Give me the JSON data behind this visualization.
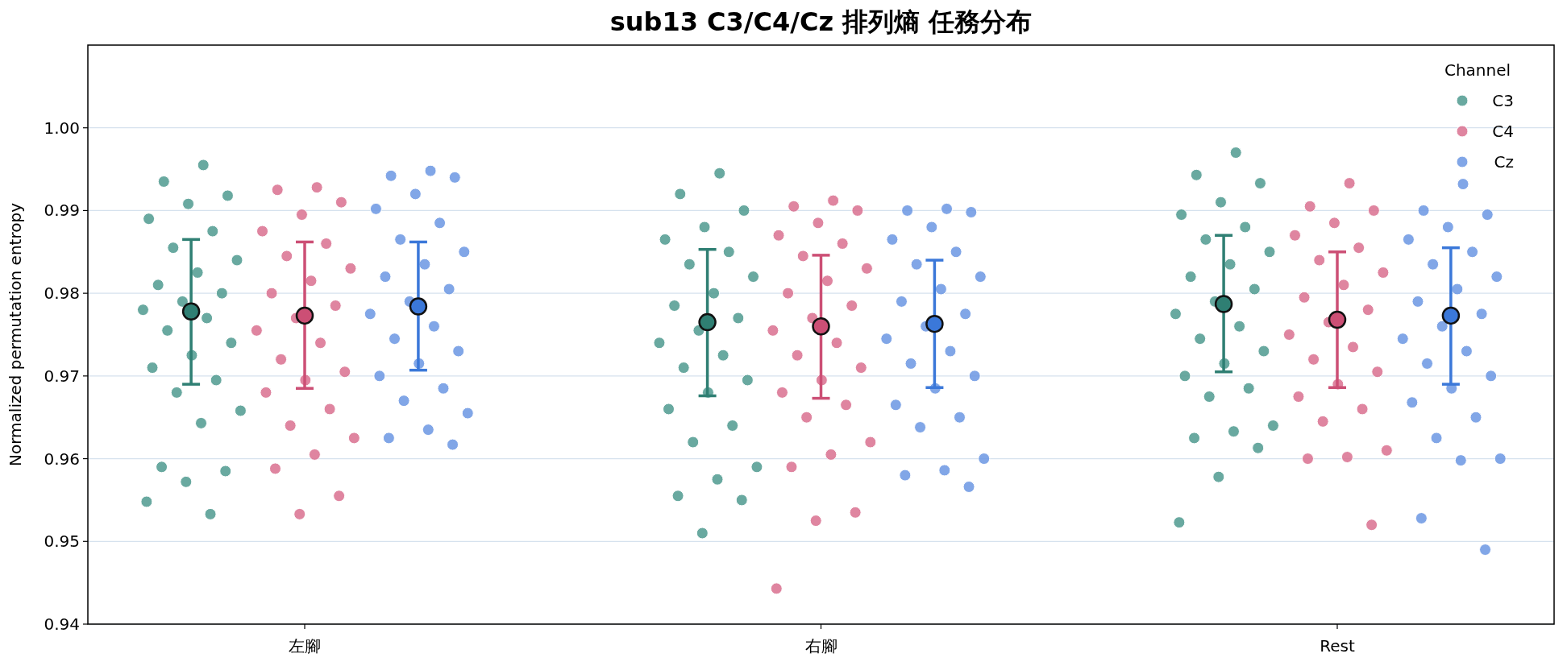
{
  "chart_data": {
    "type": "scatter",
    "title": "sub13 C3/C4/Cz 排列熵 任務分布",
    "ylabel": "Normalized permutation entropy",
    "legend_title": "Channel",
    "legend": "top right",
    "grid": "y",
    "marker": "circle",
    "categories": [
      "左腳",
      "右腳",
      "Rest"
    ],
    "ylim": [
      0.94,
      1.01
    ],
    "yticks": [
      0.94,
      0.95,
      0.96,
      0.97,
      0.98,
      0.99,
      {
        "value": 1.0,
        "label": "1.00"
      }
    ],
    "series": [
      {
        "name": "C3",
        "color": "#4f9a8f",
        "x": [
          "左腳",
          "左腳",
          "左腳",
          "左腳",
          "左腳",
          "左腳",
          "左腳",
          "左腳",
          "左腳",
          "左腳",
          "左腳",
          "左腳",
          "左腳",
          "左腳",
          "左腳",
          "左腳",
          "左腳",
          "左腳",
          "左腳",
          "左腳",
          "左腳",
          "左腳",
          "左腳",
          "左腳",
          "左腳",
          "左腳",
          "左腳",
          "右腳",
          "右腳",
          "右腳",
          "右腳",
          "右腳",
          "右腳",
          "右腳",
          "右腳",
          "右腳",
          "右腳",
          "右腳",
          "右腳",
          "右腳",
          "右腳",
          "右腳",
          "右腳",
          "右腳",
          "右腳",
          "右腳",
          "右腳",
          "右腳",
          "右腳",
          "右腳",
          "右腳",
          "右腳",
          "Rest",
          "Rest",
          "Rest",
          "Rest",
          "Rest",
          "Rest",
          "Rest",
          "Rest",
          "Rest",
          "Rest",
          "Rest",
          "Rest",
          "Rest",
          "Rest",
          "Rest",
          "Rest",
          "Rest",
          "Rest",
          "Rest",
          "Rest",
          "Rest",
          "Rest",
          "Rest",
          "Rest",
          "Rest",
          "Rest"
        ],
        "values": [
          0.9955,
          0.9935,
          0.9918,
          0.9908,
          0.989,
          0.9875,
          0.9855,
          0.984,
          0.9825,
          0.981,
          0.98,
          0.979,
          0.978,
          0.977,
          0.9755,
          0.974,
          0.9725,
          0.971,
          0.9695,
          0.968,
          0.9658,
          0.9643,
          0.959,
          0.9585,
          0.9572,
          0.9548,
          0.9533,
          0.9945,
          0.992,
          0.99,
          0.988,
          0.9865,
          0.985,
          0.9835,
          0.982,
          0.98,
          0.9785,
          0.977,
          0.9755,
          0.974,
          0.9725,
          0.971,
          0.9695,
          0.968,
          0.966,
          0.964,
          0.962,
          0.959,
          0.9575,
          0.9555,
          0.955,
          0.951,
          0.997,
          0.9943,
          0.9933,
          0.991,
          0.9895,
          0.988,
          0.9865,
          0.985,
          0.9835,
          0.982,
          0.9805,
          0.979,
          0.9775,
          0.976,
          0.9745,
          0.973,
          0.9715,
          0.97,
          0.9685,
          0.9675,
          0.964,
          0.9633,
          0.9625,
          0.9613,
          0.9578,
          0.9523
        ]
      },
      {
        "name": "C4",
        "color": "#d9708f",
        "x": [
          "左腳",
          "左腳",
          "左腳",
          "左腳",
          "左腳",
          "左腳",
          "左腳",
          "左腳",
          "左腳",
          "左腳",
          "左腳",
          "左腳",
          "左腳",
          "左腳",
          "左腳",
          "左腳",
          "左腳",
          "左腳",
          "左腳",
          "左腳",
          "左腳",
          "左腳",
          "左腳",
          "左腳",
          "左腳",
          "右腳",
          "右腳",
          "右腳",
          "右腳",
          "右腳",
          "右腳",
          "右腳",
          "右腳",
          "右腳",
          "右腳",
          "右腳",
          "右腳",
          "右腳",
          "右腳",
          "右腳",
          "右腳",
          "右腳",
          "右腳",
          "右腳",
          "右腳",
          "右腳",
          "右腳",
          "右腳",
          "右腳",
          "右腳",
          "右腳",
          "Rest",
          "Rest",
          "Rest",
          "Rest",
          "Rest",
          "Rest",
          "Rest",
          "Rest",
          "Rest",
          "Rest",
          "Rest",
          "Rest",
          "Rest",
          "Rest",
          "Rest",
          "Rest",
          "Rest",
          "Rest",
          "Rest",
          "Rest",
          "Rest",
          "Rest",
          "Rest",
          "Rest"
        ],
        "values": [
          0.9928,
          0.9925,
          0.991,
          0.9895,
          0.9875,
          0.986,
          0.9845,
          0.983,
          0.9815,
          0.98,
          0.9785,
          0.977,
          0.9755,
          0.974,
          0.972,
          0.9705,
          0.9695,
          0.968,
          0.966,
          0.964,
          0.9625,
          0.9605,
          0.9588,
          0.9555,
          0.9533,
          0.9912,
          0.9905,
          0.99,
          0.9885,
          0.987,
          0.986,
          0.9845,
          0.983,
          0.9815,
          0.98,
          0.9785,
          0.977,
          0.9755,
          0.974,
          0.9725,
          0.971,
          0.9695,
          0.968,
          0.9665,
          0.965,
          0.962,
          0.9605,
          0.959,
          0.9535,
          0.9525,
          0.9443,
          0.9933,
          0.9905,
          0.99,
          0.9885,
          0.987,
          0.9855,
          0.984,
          0.9825,
          0.981,
          0.9795,
          0.978,
          0.9765,
          0.975,
          0.9735,
          0.972,
          0.9705,
          0.969,
          0.9675,
          0.966,
          0.9645,
          0.961,
          0.9602,
          0.96,
          0.952
        ]
      },
      {
        "name": "Cz",
        "color": "#6b97e3",
        "x": [
          "左腳",
          "左腳",
          "左腳",
          "左腳",
          "左腳",
          "左腳",
          "左腳",
          "左腳",
          "左腳",
          "左腳",
          "左腳",
          "左腳",
          "左腳",
          "左腳",
          "左腳",
          "左腳",
          "左腳",
          "左腳",
          "左腳",
          "左腳",
          "左腳",
          "左腳",
          "左腳",
          "左腳",
          "右腳",
          "右腳",
          "右腳",
          "右腳",
          "右腳",
          "右腳",
          "右腳",
          "右腳",
          "右腳",
          "右腳",
          "右腳",
          "右腳",
          "右腳",
          "右腳",
          "右腳",
          "右腳",
          "右腳",
          "右腳",
          "右腳",
          "右腳",
          "右腳",
          "右腳",
          "右腳",
          "右腳",
          "Rest",
          "Rest",
          "Rest",
          "Rest",
          "Rest",
          "Rest",
          "Rest",
          "Rest",
          "Rest",
          "Rest",
          "Rest",
          "Rest",
          "Rest",
          "Rest",
          "Rest",
          "Rest",
          "Rest",
          "Rest",
          "Rest",
          "Rest",
          "Rest",
          "Rest",
          "Rest",
          "Rest"
        ],
        "values": [
          0.9948,
          0.9942,
          0.994,
          0.992,
          0.9902,
          0.9885,
          0.9865,
          0.985,
          0.9835,
          0.982,
          0.9805,
          0.979,
          0.9775,
          0.976,
          0.9745,
          0.973,
          0.9715,
          0.97,
          0.9685,
          0.967,
          0.9655,
          0.9635,
          0.9625,
          0.9617,
          0.9902,
          0.99,
          0.9898,
          0.988,
          0.9865,
          0.985,
          0.9835,
          0.982,
          0.9805,
          0.979,
          0.9775,
          0.976,
          0.9745,
          0.973,
          0.9715,
          0.97,
          0.9685,
          0.9665,
          0.965,
          0.9638,
          0.96,
          0.9586,
          0.958,
          0.9566,
          0.9932,
          0.99,
          0.9895,
          0.988,
          0.9865,
          0.985,
          0.9835,
          0.982,
          0.9805,
          0.979,
          0.9775,
          0.976,
          0.9745,
          0.973,
          0.9715,
          0.97,
          0.9685,
          0.9668,
          0.965,
          0.9625,
          0.96,
          0.9598,
          0.9528,
          0.949
        ]
      },
      {
        "color": "#2f7f73",
        "x": [
          "左腳",
          "右腳",
          "Rest"
        ],
        "values": [
          0.9778,
          0.9765,
          0.9787
        ],
        "errors": [
          [
            0.969,
            0.9865
          ],
          [
            0.9676,
            0.9853
          ],
          [
            0.9705,
            0.987
          ]
        ]
      },
      {
        "color": "#cc4f75",
        "x": [
          "左腳",
          "右腳",
          "Rest"
        ],
        "values": [
          0.9773,
          0.976,
          0.9768
        ],
        "errors": [
          [
            0.9685,
            0.9862
          ],
          [
            0.9673,
            0.9846
          ],
          [
            0.9686,
            0.985
          ]
        ]
      },
      {
        "color": "#3b78d9",
        "x": [
          "左腳",
          "右腳",
          "Rest"
        ],
        "values": [
          0.9784,
          0.9763,
          0.9773
        ],
        "errors": [
          [
            0.9707,
            0.9862
          ],
          [
            0.9686,
            0.984
          ],
          [
            0.969,
            0.9855
          ]
        ]
      }
    ]
  }
}
